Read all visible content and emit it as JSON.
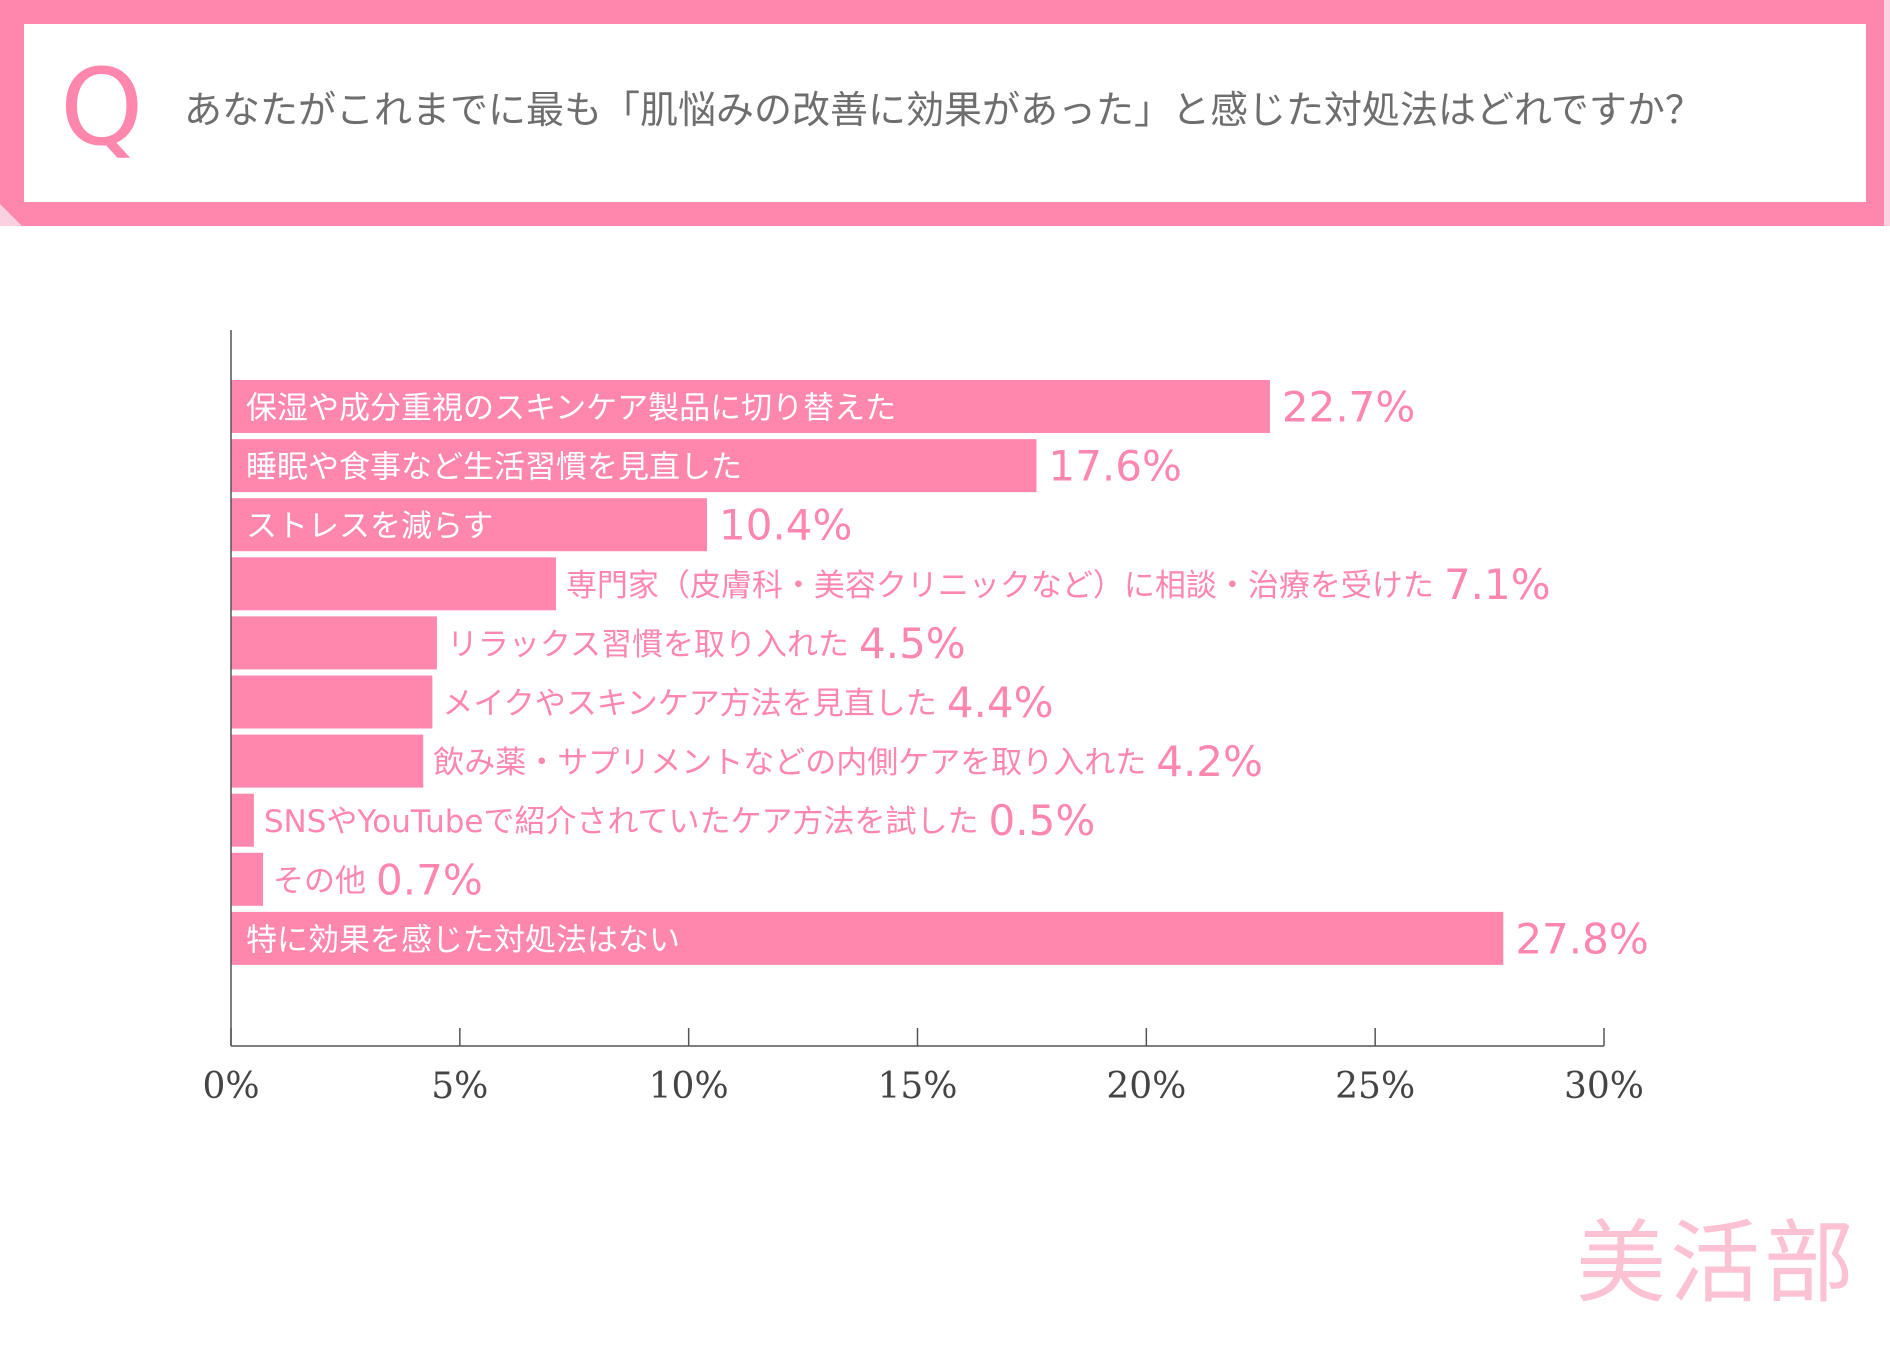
{
  "question": {
    "letter": "Q",
    "text": "あなたがこれまでに最も「肌悩みの改善に効果があった」と感じた対処法はどれですか？"
  },
  "colors": {
    "accent": "#ff86ad",
    "accent_light": "#fbd0e0",
    "axis": "#555555",
    "label_on_bar": "#ffffff",
    "label_off_bar": "#ff86ad",
    "watermark": "#fcc2d4"
  },
  "chart_data": {
    "type": "bar",
    "orientation": "horizontal",
    "categories": [
      "保湿や成分重視のスキンケア製品に切り替えた",
      "睡眠や食事など生活習慣を見直した",
      "ストレスを減らす",
      "専門家（皮膚科・美容クリニックなど）に相談・治療を受けた",
      "リラックス習慣を取り入れた",
      "メイクやスキンケア方法を見直した",
      "飲み薬・サプリメントなどの内側ケアを取り入れた",
      "SNSやYouTubeで紹介されていたケア方法を試した",
      "その他",
      "特に効果を感じた対処法はない"
    ],
    "values": [
      22.7,
      17.6,
      10.4,
      7.1,
      4.5,
      4.4,
      4.2,
      0.5,
      0.7,
      27.8
    ],
    "value_labels": [
      "22.7%",
      "17.6%",
      "10.4%",
      "7.1%",
      "4.5%",
      "4.4%",
      "4.2%",
      "0.5%",
      "0.7%",
      "27.8%"
    ],
    "label_inside": [
      true,
      true,
      true,
      false,
      false,
      false,
      false,
      false,
      false,
      true
    ],
    "xlim": [
      0,
      30
    ],
    "xticks": [
      "0%",
      "5%",
      "10%",
      "15%",
      "20%",
      "25%",
      "30%"
    ],
    "xtick_values": [
      0,
      5,
      10,
      15,
      20,
      25,
      30
    ],
    "title": "",
    "xlabel": "",
    "ylabel": ""
  },
  "brand": {
    "watermark": "美活部"
  }
}
